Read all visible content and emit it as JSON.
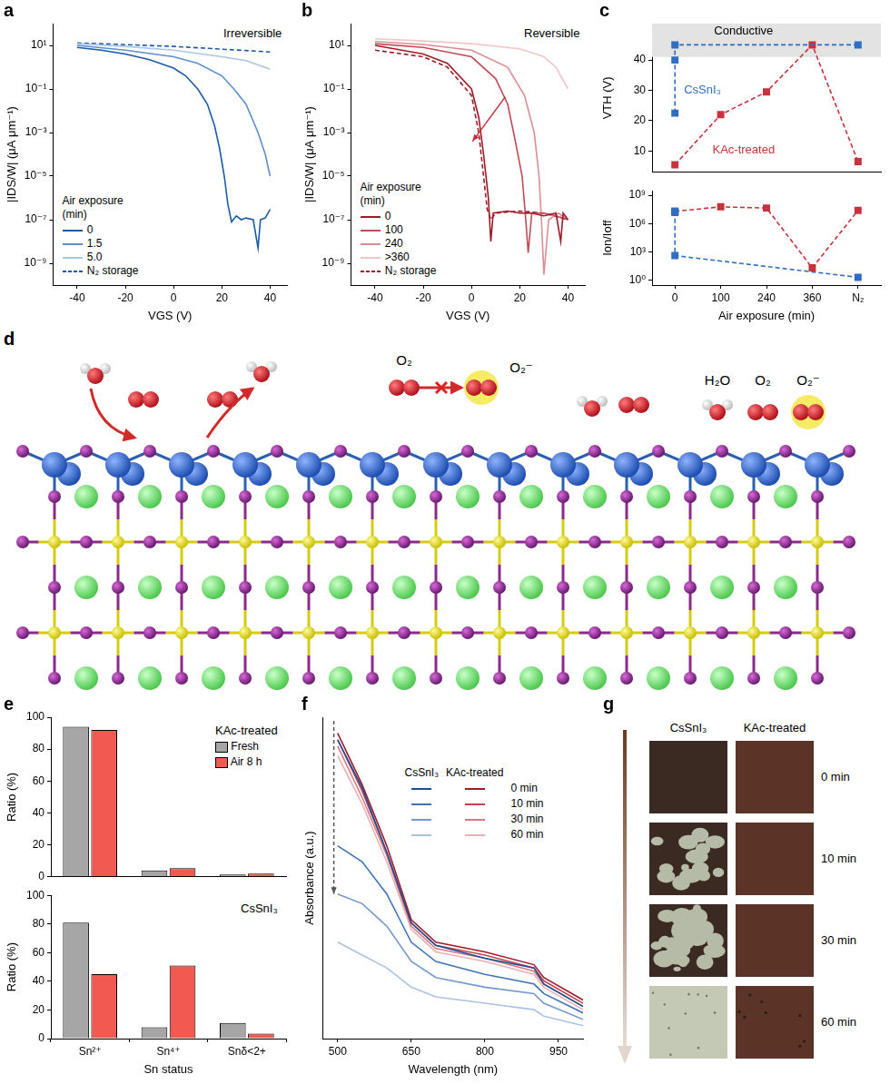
{
  "chart_data": [
    {
      "panel": "a",
      "type": "line",
      "annotation": "Irreversible",
      "xlabel": "VGS (V)",
      "ylabel": "|IDS/W| (μA μm⁻¹)",
      "xlim": [
        -50,
        47
      ],
      "xticks": [
        -40,
        -20,
        0,
        20,
        40
      ],
      "ylim": [
        1e-10,
        100
      ],
      "yticks": [
        {
          "value": 1e-09,
          "label": "10⁻⁹"
        },
        {
          "value": 1e-07,
          "label": "10⁻⁷"
        },
        {
          "value": 1e-05,
          "label": "10⁻⁵"
        },
        {
          "value": 0.001,
          "label": "10⁻³"
        },
        {
          "value": 0.1,
          "label": "10⁻¹"
        },
        {
          "value": 10,
          "label": "10¹"
        }
      ],
      "log": "y",
      "grid": false,
      "legend": "lower left",
      "legend_title": "Air exposure (min)",
      "series": [
        {
          "name": "0",
          "color": "#1a5ba8",
          "line_style": "solid",
          "x": [
            -40,
            -30,
            -20,
            -10,
            0,
            5,
            10,
            14,
            17,
            19,
            21,
            22.5,
            24,
            26,
            28,
            30,
            33,
            35,
            36,
            38,
            40
          ],
          "values": [
            8,
            6,
            4,
            2.2,
            0.9,
            0.4,
            0.1,
            0.02,
            0.002,
            0.0002,
            1e-05,
            5e-07,
            8e-08,
            1.5e-07,
            1e-07,
            1.2e-07,
            1e-07,
            5e-09,
            1e-07,
            1.2e-07,
            3e-07
          ]
        },
        {
          "name": "1.5",
          "color": "#5d8fcc",
          "line_style": "solid",
          "x": [
            -40,
            -20,
            0,
            10,
            20,
            25,
            30,
            35,
            38,
            40
          ],
          "values": [
            10,
            6,
            3,
            1.5,
            0.4,
            0.1,
            0.02,
            0.001,
            0.0001,
            1e-05
          ]
        },
        {
          "name": "5.0",
          "color": "#a9c6e8",
          "line_style": "solid",
          "x": [
            -40,
            -20,
            0,
            20,
            30,
            40
          ],
          "values": [
            12,
            9,
            6,
            3,
            2,
            0.8
          ]
        },
        {
          "name": "N₂ storage",
          "color": "#1a5ba8",
          "line_style": "dashed",
          "x": [
            -40,
            0,
            40
          ],
          "values": [
            13,
            9,
            5
          ]
        }
      ]
    },
    {
      "panel": "b",
      "type": "line",
      "annotation": "Reversible",
      "xlabel": "VGS (V)",
      "ylabel": "|IDS/W| (μA μm⁻¹)",
      "xlim": [
        -50,
        47
      ],
      "xticks": [
        -40,
        -20,
        0,
        20,
        40
      ],
      "ylim": [
        1e-10,
        100
      ],
      "yticks": [
        {
          "value": 1e-09,
          "label": "10⁻⁹"
        },
        {
          "value": 1e-07,
          "label": "10⁻⁷"
        },
        {
          "value": 1e-05,
          "label": "10⁻⁵"
        },
        {
          "value": 0.001,
          "label": "10⁻³"
        },
        {
          "value": 0.1,
          "label": "10⁻¹"
        },
        {
          "value": 10,
          "label": "10¹"
        }
      ],
      "log": "y",
      "grid": false,
      "legend": "lower left",
      "legend_title": "Air exposure (min)",
      "series": [
        {
          "name": "0",
          "color": "#9e1b25",
          "line_style": "solid",
          "x": [
            -40,
            -20,
            -10,
            0,
            3,
            5,
            7,
            8,
            9,
            15,
            20,
            25,
            30,
            35,
            37,
            38,
            40
          ],
          "values": [
            10,
            4,
            1.5,
            0.1,
            0.005,
            0.0001,
            1e-06,
            1e-08,
            2e-07,
            2.5e-07,
            2e-07,
            2e-07,
            1.5e-07,
            2e-07,
            1e-08,
            2e-07,
            1e-07
          ]
        },
        {
          "name": "100",
          "color": "#c24a55",
          "line_style": "solid",
          "x": [
            -40,
            -20,
            0,
            10,
            15,
            18,
            21,
            22.5,
            23.5,
            25,
            30,
            35,
            40
          ],
          "values": [
            12,
            8,
            3,
            0.3,
            0.02,
            0.0005,
            1e-05,
            1e-07,
            3e-09,
            2e-07,
            2e-07,
            1.5e-07,
            1e-07
          ]
        },
        {
          "name": "240",
          "color": "#dc8d93",
          "line_style": "solid",
          "x": [
            -40,
            -20,
            0,
            15,
            22,
            26,
            28,
            29,
            30,
            32,
            36,
            40
          ],
          "values": [
            15,
            11,
            6,
            1,
            0.05,
            0.001,
            1e-05,
            1e-07,
            3e-10,
            1e-07,
            2e-07,
            1e-07
          ]
        },
        {
          "name": ">360",
          "color": "#f2c6c8",
          "line_style": "solid",
          "x": [
            -40,
            -20,
            0,
            20,
            30,
            35,
            40
          ],
          "values": [
            20,
            16,
            12,
            7,
            3,
            1,
            0.1
          ]
        },
        {
          "name": "N₂ storage",
          "color": "#9e1b25",
          "line_style": "dashed",
          "x": [
            -40,
            -20,
            -10,
            0,
            3,
            5,
            6.5,
            8,
            10,
            20,
            30,
            40
          ],
          "values": [
            6,
            3,
            1,
            0.05,
            0.001,
            1e-05,
            3e-07,
            1e-07,
            2e-07,
            2.5e-07,
            2e-07,
            1e-07
          ]
        }
      ]
    },
    {
      "panel": "c",
      "type": "line",
      "categories": [
        "0",
        "100",
        "240",
        "360",
        "N₂"
      ],
      "ylabel": "VTH (V)",
      "ylim": [
        3,
        52
      ],
      "yticks": [
        10,
        20,
        30,
        40
      ],
      "tick_labels": "y",
      "grid": false,
      "band": {
        "label": "Conductive",
        "range": [
          41,
          52
        ]
      },
      "series": [
        {
          "name": "CsSnI₃",
          "color": "#2e6fc4",
          "marker": "square",
          "line_style": "dashed",
          "x": [
            "0",
            "0",
            "0",
            "N₂"
          ],
          "values": [
            22.5,
            40,
            45,
            45
          ]
        },
        {
          "name": "KAc-treated",
          "color": "#c8323c",
          "marker": "square",
          "line_style": "dashed",
          "x": [
            "0",
            "100",
            "240",
            "360",
            "N₂"
          ],
          "values": [
            5.5,
            22,
            29.5,
            45,
            6.5
          ]
        }
      ]
    },
    {
      "type": "line",
      "categories": [
        "0",
        "100",
        "240",
        "360",
        "N₂"
      ],
      "xlabel": "Air exposure (min)",
      "ylabel": "Ion/Ioff",
      "ylim": [
        0.3,
        3000000000
      ],
      "yticks": [
        {
          "value": 1,
          "label": "10⁰"
        },
        {
          "value": 1000,
          "label": "10³"
        },
        {
          "value": 1000000,
          "label": "10⁶"
        },
        {
          "value": 1000000000,
          "label": "10⁹"
        }
      ],
      "log": "y",
      "grid": false,
      "series": [
        {
          "name": "CsSnI₃",
          "color": "#2e6fc4",
          "marker": "square",
          "line_style": "dashed",
          "x": [
            "0",
            "0",
            "0",
            "N₂"
          ],
          "values": [
            20000000,
            15000000,
            400,
            2
          ]
        },
        {
          "name": "KAc-treated",
          "color": "#c8323c",
          "marker": "square",
          "line_style": "dashed",
          "x": [
            "0",
            "100",
            "240",
            "360",
            "N₂"
          ],
          "values": [
            20000000,
            60000000,
            45000000,
            20,
            25000000
          ]
        }
      ]
    },
    {
      "panel": "e",
      "type": "bar",
      "title": "KAc-treated",
      "categories": [
        "Sn²⁺",
        "Sn⁴⁺",
        "Snδ<2+"
      ],
      "ylabel": "Ratio (%)",
      "ylim": [
        0,
        100
      ],
      "yticks": [
        0,
        20,
        40,
        60,
        80,
        100
      ],
      "tick_labels": "y",
      "grid": false,
      "legend": "upper right",
      "series": [
        {
          "name": "Fresh",
          "color": "#a6a6a6",
          "values": [
            94,
            4,
            1.5
          ]
        },
        {
          "name": "Air 8 h",
          "color": "#f05a50",
          "values": [
            92,
            5.5,
            2
          ]
        }
      ]
    },
    {
      "type": "bar",
      "title": "CsSnI₃",
      "categories": [
        "Sn²⁺",
        "Sn⁴⁺",
        "Snδ<2+"
      ],
      "xlabel": "Sn status",
      "ylabel": "Ratio (%)",
      "ylim": [
        0,
        100
      ],
      "yticks": [
        0,
        20,
        40,
        60,
        80,
        100
      ],
      "grid": false,
      "series": [
        {
          "name": "Fresh",
          "color": "#a6a6a6",
          "values": [
            81,
            8,
            11
          ]
        },
        {
          "name": "Air 8 h",
          "color": "#f05a50",
          "values": [
            45,
            51,
            3.5
          ]
        }
      ]
    },
    {
      "panel": "f",
      "type": "line",
      "xlabel": "Wavelength (nm)",
      "ylabel": "Absorbance (a.u.)",
      "xlim": [
        470,
        1000
      ],
      "xticks": [
        500,
        650,
        800,
        950
      ],
      "ylim": [
        0,
        1
      ],
      "yticks": [],
      "tick_labels": "x",
      "grid": false,
      "legend": "upper right",
      "series": [
        {
          "group": "CsSnI₃",
          "name": "0 min",
          "color": "#1a4f96",
          "line_style": "solid",
          "x": [
            500,
            550,
            600,
            650,
            700,
            800,
            900,
            920,
            1000
          ],
          "values": [
            0.93,
            0.78,
            0.58,
            0.36,
            0.29,
            0.25,
            0.22,
            0.17,
            0.1
          ]
        },
        {
          "group": "CsSnI₃",
          "name": "10 min",
          "color": "#3f74b8",
          "line_style": "solid",
          "x": [
            500,
            550,
            600,
            650,
            700,
            800,
            900,
            920,
            1000
          ],
          "values": [
            0.6,
            0.55,
            0.45,
            0.3,
            0.24,
            0.2,
            0.17,
            0.14,
            0.08
          ]
        },
        {
          "group": "CsSnI₃",
          "name": "30 min",
          "color": "#7499cc",
          "line_style": "solid",
          "x": [
            500,
            550,
            600,
            650,
            700,
            800,
            900,
            920,
            1000
          ],
          "values": [
            0.45,
            0.42,
            0.35,
            0.24,
            0.19,
            0.16,
            0.14,
            0.11,
            0.06
          ]
        },
        {
          "group": "CsSnI₃",
          "name": "60 min",
          "color": "#aac3e3",
          "line_style": "solid",
          "x": [
            500,
            550,
            600,
            650,
            700,
            800,
            900,
            920,
            1000
          ],
          "values": [
            0.3,
            0.26,
            0.22,
            0.16,
            0.13,
            0.11,
            0.09,
            0.07,
            0.04
          ]
        },
        {
          "group": "KAc-treated",
          "name": "0 min",
          "color": "#a01c28",
          "line_style": "solid",
          "x": [
            500,
            550,
            600,
            650,
            700,
            800,
            900,
            920,
            1000
          ],
          "values": [
            0.95,
            0.79,
            0.6,
            0.37,
            0.3,
            0.27,
            0.23,
            0.19,
            0.12
          ]
        },
        {
          "group": "KAc-treated",
          "name": "10 min",
          "color": "#c24652",
          "line_style": "solid",
          "x": [
            500,
            550,
            600,
            650,
            700,
            800,
            900,
            920,
            1000
          ],
          "values": [
            0.93,
            0.77,
            0.58,
            0.36,
            0.29,
            0.26,
            0.22,
            0.18,
            0.11
          ]
        },
        {
          "group": "KAc-treated",
          "name": "30 min",
          "color": "#d87880",
          "line_style": "solid",
          "x": [
            500,
            550,
            600,
            650,
            700,
            800,
            900,
            920,
            1000
          ],
          "values": [
            0.91,
            0.75,
            0.57,
            0.35,
            0.28,
            0.25,
            0.21,
            0.17,
            0.1
          ]
        },
        {
          "group": "KAc-treated",
          "name": "60 min",
          "color": "#eab0b4",
          "line_style": "solid",
          "x": [
            500,
            550,
            600,
            650,
            700,
            800,
            900,
            920,
            1000
          ],
          "values": [
            0.88,
            0.73,
            0.55,
            0.34,
            0.27,
            0.24,
            0.2,
            0.16,
            0.09
          ]
        }
      ]
    }
  ],
  "structure_diagram": {
    "panel": "d",
    "labels": [
      "O₂",
      "O₂⁻",
      "H₂O",
      "O₂",
      "O₂⁻"
    ]
  },
  "photo_grid": {
    "panel": "g",
    "columns": [
      "CsSnI₃",
      "KAc-treated"
    ],
    "rows": [
      "0 min",
      "10 min",
      "30 min",
      "60 min"
    ]
  }
}
